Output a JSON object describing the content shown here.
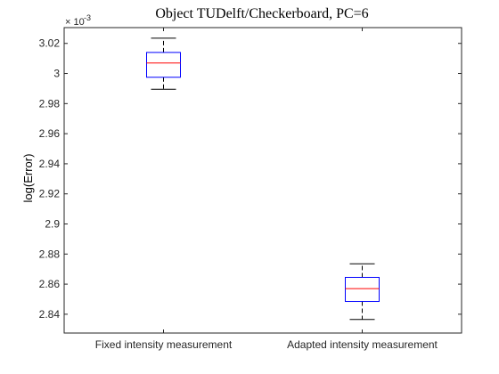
{
  "chart_data": {
    "type": "box",
    "title": "Object TUDelft/Checkerboard, PC=6",
    "xlabel": "",
    "ylabel": "log(Error)",
    "y_exponent_label": "× 10",
    "y_exponent_power": "-3",
    "ylim": [
      2.8275,
      3.0305
    ],
    "yticks": [
      2.84,
      2.86,
      2.88,
      2.9,
      2.92,
      2.94,
      2.96,
      2.98,
      3,
      3.02
    ],
    "ytick_labels": [
      "2.84",
      "2.86",
      "2.88",
      "2.9",
      "2.92",
      "2.94",
      "2.96",
      "2.98",
      "3",
      "3.02"
    ],
    "categories": [
      "Fixed intensity measurement",
      "Adapted intensity measurement"
    ],
    "boxes": [
      {
        "whisker_low": 2.9895,
        "q1": 2.9975,
        "median": 3.007,
        "q3": 3.014,
        "whisker_high": 3.0235
      },
      {
        "whisker_low": 2.8365,
        "q1": 2.8485,
        "median": 2.857,
        "q3": 2.8645,
        "whisker_high": 2.8735
      }
    ],
    "grid": false,
    "box_color": "#0000FF",
    "median_color": "#FF0000",
    "whisker_color": "#000000"
  }
}
